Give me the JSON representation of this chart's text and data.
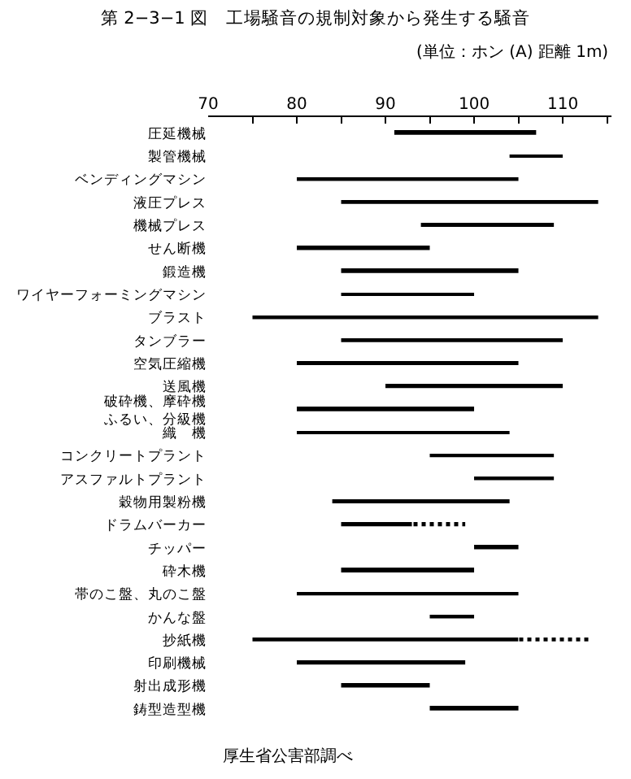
{
  "chart_data": {
    "type": "bar",
    "orientation": "horizontal",
    "title": "第 2−3−1 図　工場騒音の規制対象から発生する騒音",
    "subtitle": "(単位：ホン (A) 距離 1m)",
    "annotations": [
      "厚生省公害部調べ"
    ],
    "categories": [
      "圧延機械",
      "製管機械",
      "ベンディングマシン",
      "液圧プレス",
      "機械プレス",
      "せん断機",
      "鍛造機",
      "ワイヤーフォーミングマシン",
      "ブラスト",
      "タンブラー",
      "空気圧縮機",
      "送風機",
      "破砕機、摩砕機ふるい、分級機",
      "織　機",
      "コンクリートプラント",
      "アスファルトプラント",
      "穀物用製粉機",
      "ドラムバーカー",
      "チッパー",
      "砕木機",
      "帯のこ盤、丸のこ盤",
      "かんな盤",
      "抄紙機",
      "印刷機械",
      "射出成形機",
      "鋳型造型機"
    ],
    "series": [
      {
        "color": "#000000",
        "line_style": "solid",
        "base": [
          91,
          104,
          80,
          85,
          94,
          80,
          85,
          85,
          75,
          85,
          80,
          90,
          80,
          80,
          95,
          100,
          84,
          85,
          100,
          85,
          80,
          95,
          75,
          80,
          85,
          95
        ],
        "values": [
          16,
          6,
          25,
          29,
          15,
          15,
          20,
          15,
          39,
          25,
          25,
          20,
          20,
          24,
          14,
          9,
          20,
          8,
          5,
          15,
          25,
          5,
          30,
          19,
          10,
          10
        ]
      },
      {
        "color": "#000000",
        "line_style": "dashed",
        "base": [
          null,
          null,
          null,
          null,
          null,
          null,
          null,
          null,
          null,
          null,
          null,
          null,
          null,
          null,
          null,
          null,
          null,
          93,
          null,
          null,
          null,
          null,
          105,
          null,
          null,
          null
        ],
        "values": [
          null,
          null,
          null,
          null,
          null,
          null,
          null,
          null,
          null,
          null,
          null,
          null,
          null,
          null,
          null,
          null,
          null,
          6,
          null,
          null,
          null,
          null,
          8,
          null,
          null,
          null
        ]
      }
    ],
    "xlim": [
      70,
      115.5
    ],
    "xticks": [
      70,
      {
        "value": 75,
        "label": null
      },
      80,
      {
        "value": 85,
        "label": null
      },
      90,
      {
        "value": 95,
        "label": null
      },
      100,
      {
        "value": 105,
        "label": null
      },
      110,
      {
        "value": 115,
        "label": null
      }
    ]
  }
}
